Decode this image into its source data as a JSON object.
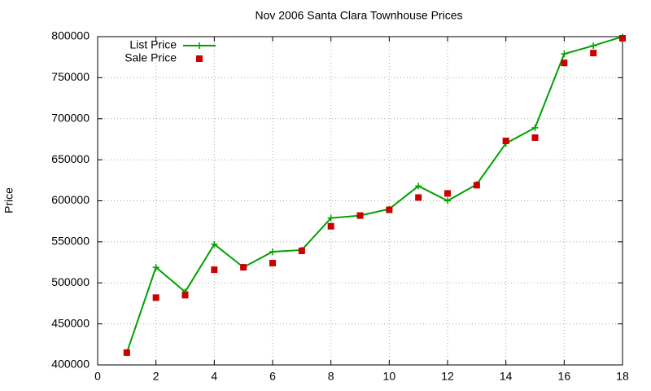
{
  "chart_data": {
    "type": "line",
    "title": "Nov 2006 Santa Clara Townhouse Prices",
    "y_label": "Price",
    "x": [
      1,
      2,
      3,
      4,
      5,
      6,
      7,
      8,
      9,
      10,
      11,
      12,
      13,
      14,
      15,
      16,
      17,
      18
    ],
    "series": [
      {
        "name": "List Price",
        "color": "#00a000",
        "mode": "lines+markers",
        "values": [
          415000,
          519000,
          489000,
          547000,
          519000,
          538000,
          540000,
          579000,
          582000,
          590000,
          618000,
          600000,
          620000,
          670000,
          689000,
          779000,
          789000,
          800000
        ]
      },
      {
        "name": "Sale Price",
        "color": "#cc0000",
        "mode": "markers",
        "values": [
          415000,
          482000,
          485000,
          516000,
          519000,
          524000,
          539000,
          569000,
          582000,
          589000,
          604000,
          609000,
          619000,
          673000,
          677000,
          768000,
          780000,
          798000
        ]
      }
    ],
    "xlim": [
      0,
      18
    ],
    "xticks": [
      0,
      2,
      4,
      6,
      8,
      10,
      12,
      14,
      16,
      18
    ],
    "ylim": [
      400000,
      800000
    ],
    "yticks": [
      400000,
      450000,
      500000,
      550000,
      600000,
      650000,
      700000,
      750000,
      800000
    ],
    "grid": true,
    "legend": "top-left"
  }
}
